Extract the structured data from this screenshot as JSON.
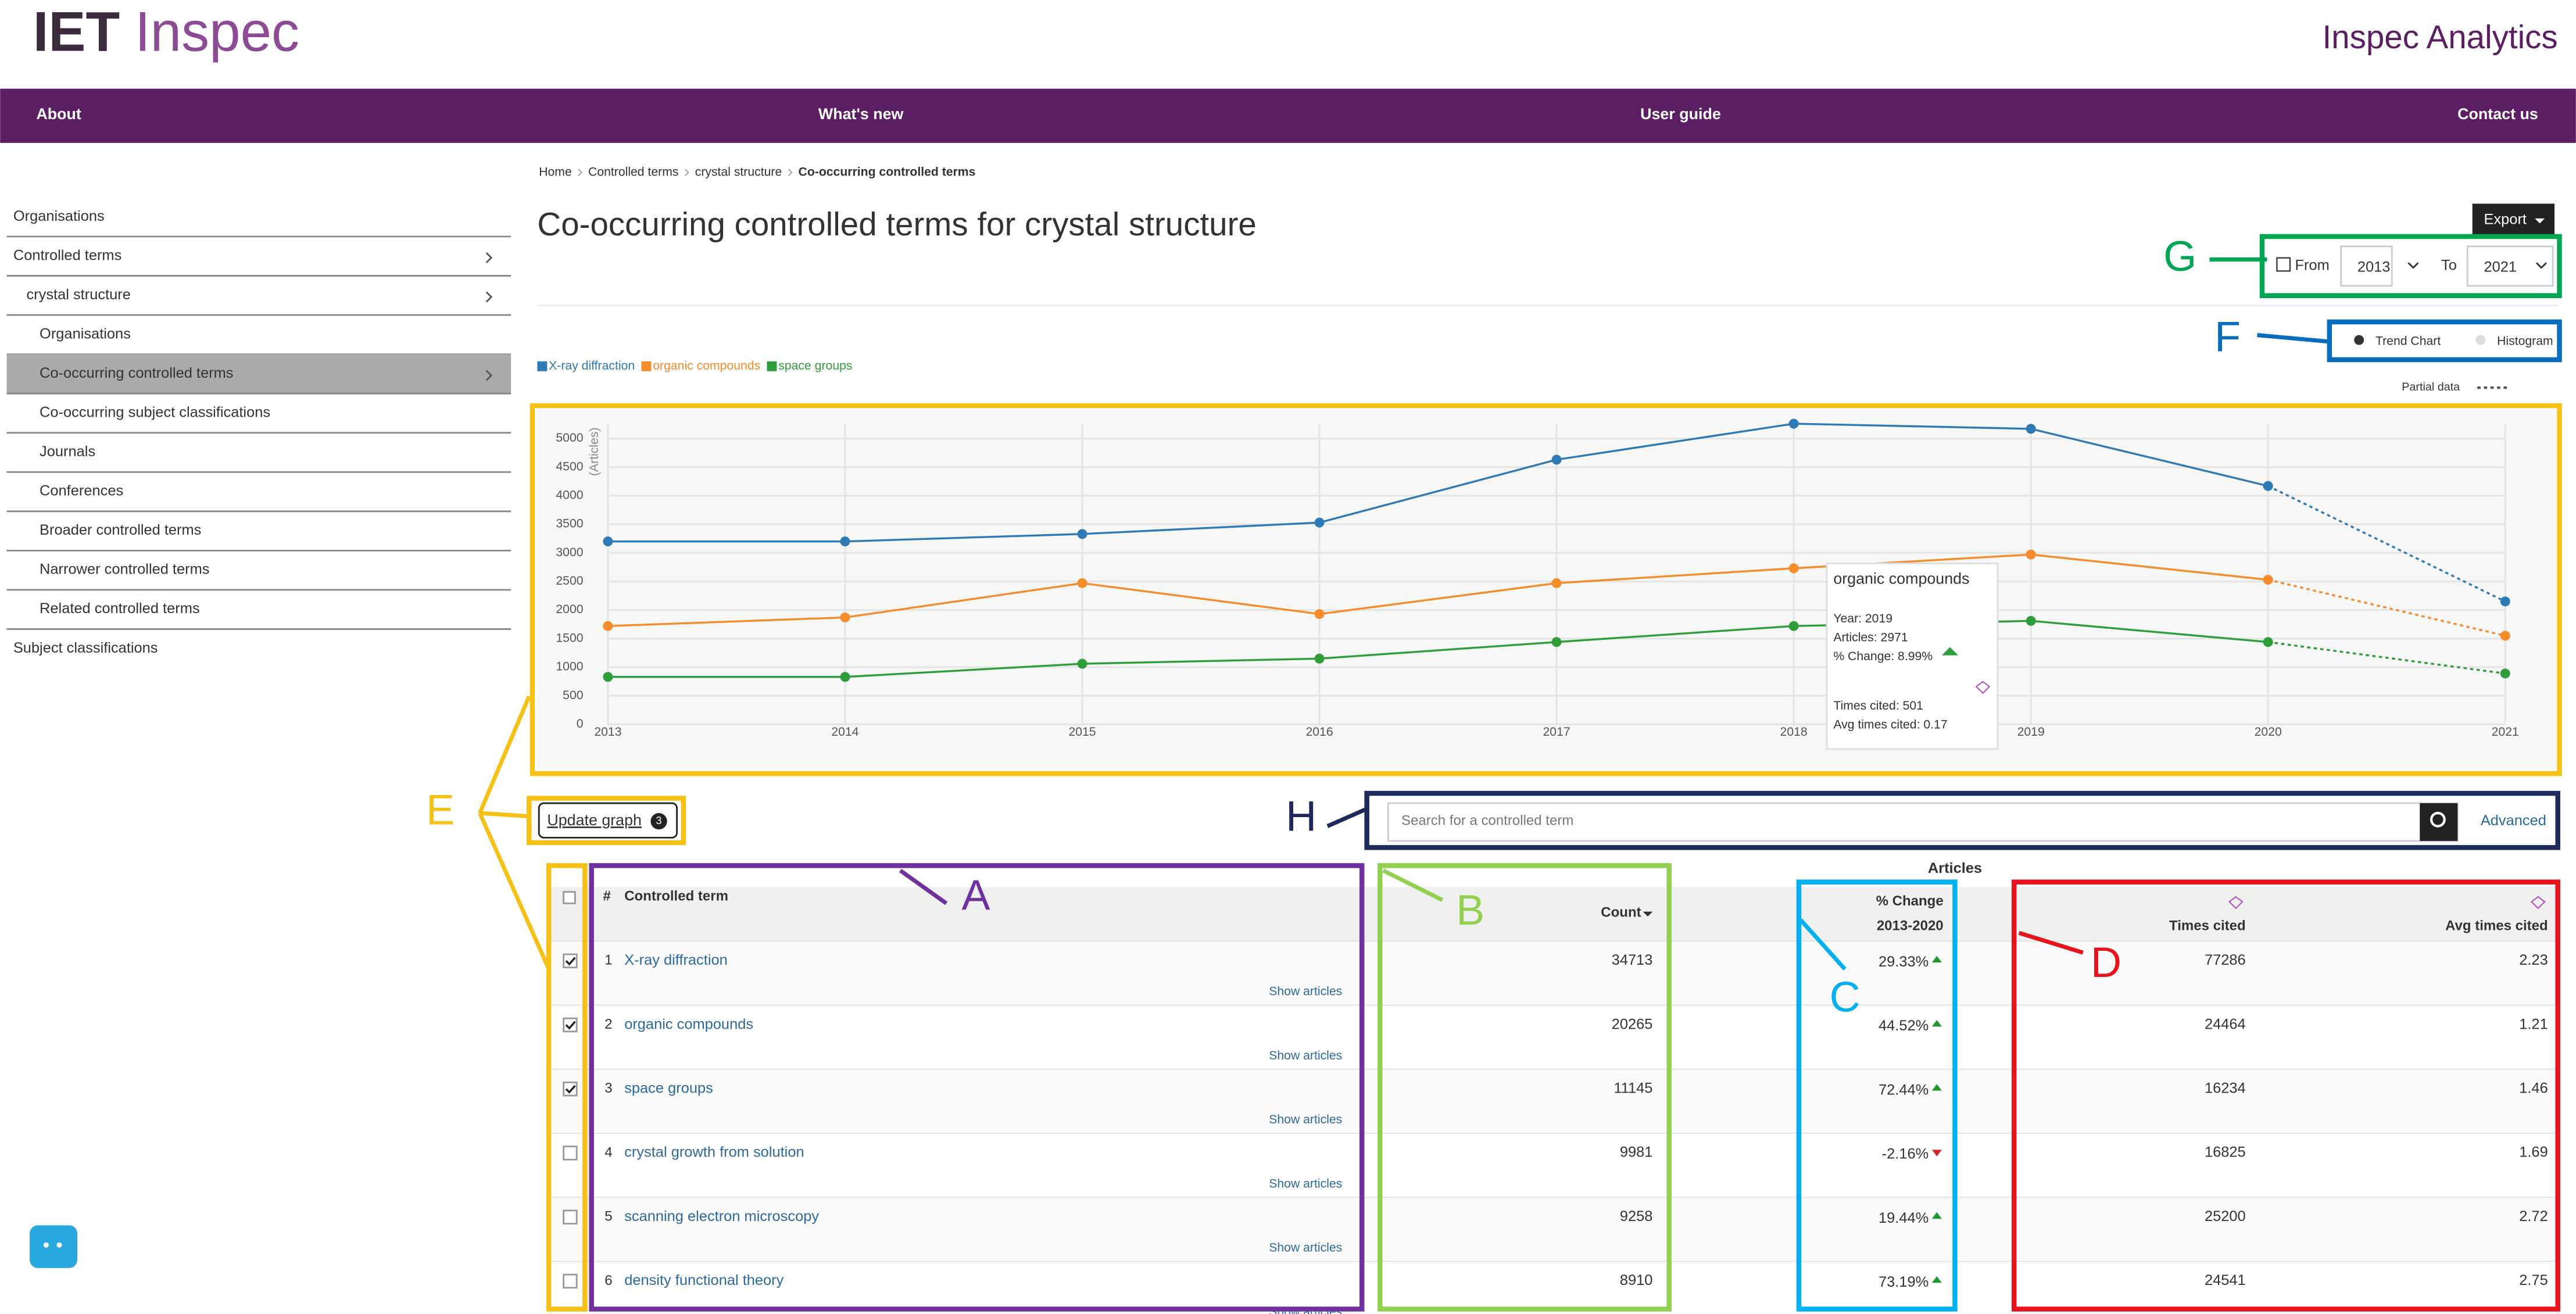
{
  "header": {
    "brand": "IET",
    "product": "Inspec",
    "app_title": "Inspec Analytics"
  },
  "nav": [
    "About",
    "What's new",
    "User guide",
    "Contact us"
  ],
  "sidebar": [
    {
      "label": "Organisations",
      "level": 0,
      "chevron": false,
      "active": false
    },
    {
      "label": "Controlled terms",
      "level": 0,
      "chevron": true,
      "active": false
    },
    {
      "label": "crystal structure",
      "level": 1,
      "chevron": true,
      "active": false
    },
    {
      "label": "Organisations",
      "level": 2,
      "chevron": false,
      "active": false
    },
    {
      "label": "Co-occurring controlled terms",
      "level": 2,
      "chevron": true,
      "active": true
    },
    {
      "label": "Co-occurring subject classifications",
      "level": 2,
      "chevron": false,
      "active": false
    },
    {
      "label": "Journals",
      "level": 2,
      "chevron": false,
      "active": false
    },
    {
      "label": "Conferences",
      "level": 2,
      "chevron": false,
      "active": false
    },
    {
      "label": "Broader controlled terms",
      "level": 2,
      "chevron": false,
      "active": false
    },
    {
      "label": "Narrower controlled terms",
      "level": 2,
      "chevron": false,
      "active": false
    },
    {
      "label": "Related controlled terms",
      "level": 2,
      "chevron": false,
      "active": false
    },
    {
      "label": "Subject classifications",
      "level": 0,
      "chevron": false,
      "active": false
    }
  ],
  "breadcrumb": [
    "Home",
    "Controlled terms",
    "crystal structure",
    "Co-occurring controlled terms"
  ],
  "page_title": "Co-occurring controlled terms for crystal structure",
  "export": "Export",
  "range": {
    "from_label": "From",
    "from": "2013",
    "to_label": "To",
    "to": "2021"
  },
  "view_toggle": {
    "options": [
      "Trend Chart",
      "Histogram"
    ],
    "selected": 0
  },
  "partial_data": "Partial data",
  "chart": {
    "type": "line",
    "y_label": "(Articles)",
    "categories": [
      "2013",
      "2014",
      "2015",
      "2016",
      "2017",
      "2018",
      "2019",
      "2020",
      "2021"
    ],
    "series": [
      {
        "name": "X-ray diffraction",
        "color": "#2e7ab6",
        "values": [
          3200,
          3200,
          3330,
          3530,
          4630,
          5260,
          5170,
          4170,
          2150
        ]
      },
      {
        "name": "organic compounds",
        "color": "#f58b2b",
        "values": [
          1720,
          1870,
          2470,
          1930,
          2470,
          2730,
          2971,
          2530,
          1550
        ]
      },
      {
        "name": "space groups",
        "color": "#2f9e3a",
        "values": [
          830,
          830,
          1060,
          1150,
          1440,
          1720,
          1810,
          1440,
          890
        ]
      }
    ],
    "ylim": [
      0,
      5000
    ],
    "yticks": [
      0,
      500,
      1000,
      1500,
      2000,
      2500,
      3000,
      3500,
      4000,
      4500,
      5000
    ],
    "grid": true,
    "partial_last_segment": true
  },
  "tooltip": {
    "title": "organic compounds",
    "lines": [
      "Year: 2019",
      "Articles: 2971",
      "% Change: 8.99%"
    ],
    "footer": [
      "Times cited: 501",
      "Avg times cited: 0.17"
    ]
  },
  "update_graph": {
    "label": "Update graph",
    "badge": "3"
  },
  "search": {
    "placeholder": "Search for a controlled term",
    "advanced": "Advanced"
  },
  "table": {
    "group_header": "Articles",
    "columns": [
      "#",
      "Controlled term",
      "Count",
      "% Change",
      "2013-2020",
      "Times cited",
      "Avg times cited"
    ],
    "show_articles": "Show articles",
    "rows": [
      {
        "n": 1,
        "term": "X-ray diffraction",
        "count": 34713,
        "change": "29.33%",
        "trend": "up",
        "cited": 77286,
        "avg": "2.23",
        "checked": true
      },
      {
        "n": 2,
        "term": "organic compounds",
        "count": 20265,
        "change": "44.52%",
        "trend": "up",
        "cited": 24464,
        "avg": "1.21",
        "checked": true
      },
      {
        "n": 3,
        "term": "space groups",
        "count": 11145,
        "change": "72.44%",
        "trend": "up",
        "cited": 16234,
        "avg": "1.46",
        "checked": true
      },
      {
        "n": 4,
        "term": "crystal growth from solution",
        "count": 9981,
        "change": "-2.16%",
        "trend": "down",
        "cited": 16825,
        "avg": "1.69",
        "checked": false
      },
      {
        "n": 5,
        "term": "scanning electron microscopy",
        "count": 9258,
        "change": "19.44%",
        "trend": "up",
        "cited": 25200,
        "avg": "2.72",
        "checked": false
      },
      {
        "n": 6,
        "term": "density functional theory",
        "count": 8910,
        "change": "73.19%",
        "trend": "up",
        "cited": 24541,
        "avg": "2.75",
        "checked": false
      }
    ]
  },
  "annotations": [
    {
      "letter": "A",
      "color": "#7030a0"
    },
    {
      "letter": "B",
      "color": "#92d050"
    },
    {
      "letter": "C",
      "color": "#00b0f0"
    },
    {
      "letter": "D",
      "color": "#e8141b"
    },
    {
      "letter": "E",
      "color": "#f5c116"
    },
    {
      "letter": "F",
      "color": "#0a6cbc"
    },
    {
      "letter": "G",
      "color": "#00a651"
    },
    {
      "letter": "H",
      "color": "#1f2a5c"
    }
  ]
}
